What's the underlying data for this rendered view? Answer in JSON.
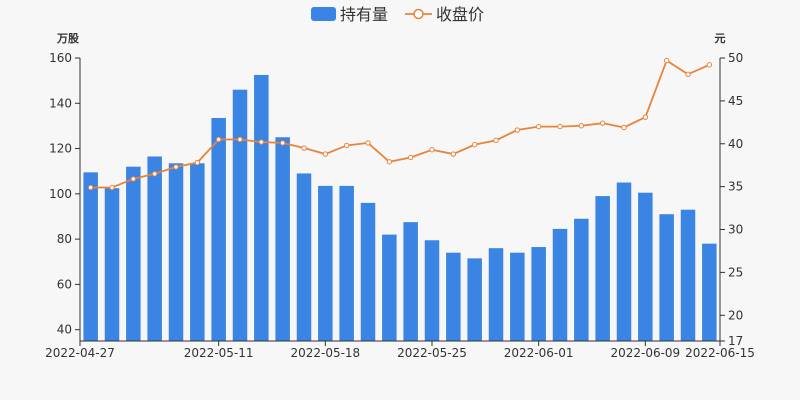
{
  "chart_data": {
    "type": "bar",
    "legend": {
      "position": "top-center",
      "items": [
        {
          "name": "持有量",
          "marker": "rect"
        },
        {
          "name": "收盘价",
          "marker": "line-circle"
        }
      ]
    },
    "y_left": {
      "unit": "万股",
      "min": 35,
      "max": 160,
      "ticks": [
        40,
        60,
        80,
        100,
        120,
        140,
        160
      ]
    },
    "y_right": {
      "unit": "元",
      "min": 17,
      "max": 50,
      "ticks": [
        17,
        20,
        25,
        30,
        35,
        40,
        45,
        50
      ]
    },
    "x_tick_labels": [
      "2022-04-27",
      "2022-05-11",
      "2022-05-18",
      "2022-05-25",
      "2022-06-01",
      "2022-06-09",
      "2022-06-15"
    ],
    "x_tick_index": [
      0,
      6,
      11,
      16,
      21,
      26,
      29
    ],
    "bar_values": [
      109.5,
      102.5,
      112,
      116.5,
      113.5,
      113.5,
      133.5,
      146,
      152.5,
      125,
      109,
      103.5,
      103.5,
      96,
      82,
      87.5,
      79.5,
      74,
      71.5,
      76,
      74,
      76.5,
      84.5,
      89,
      99,
      105,
      100.5,
      91,
      93,
      78
    ],
    "line_values": [
      34.9,
      34.9,
      35.9,
      36.5,
      37.3,
      37.8,
      40.5,
      40.5,
      40.2,
      40.1,
      39.5,
      38.8,
      39.8,
      40.1,
      37.9,
      38.4,
      39.3,
      38.8,
      39.9,
      40.4,
      41.6,
      42.0,
      42.0,
      42.1,
      42.4,
      41.9,
      43.1,
      49.7,
      48.1,
      49.2
    ],
    "colors": {
      "bar": "#3a84e3",
      "line": "#e8833a",
      "point_fill": "#ffffff",
      "axis": "#333333",
      "text": "#333333"
    },
    "grid": false
  }
}
